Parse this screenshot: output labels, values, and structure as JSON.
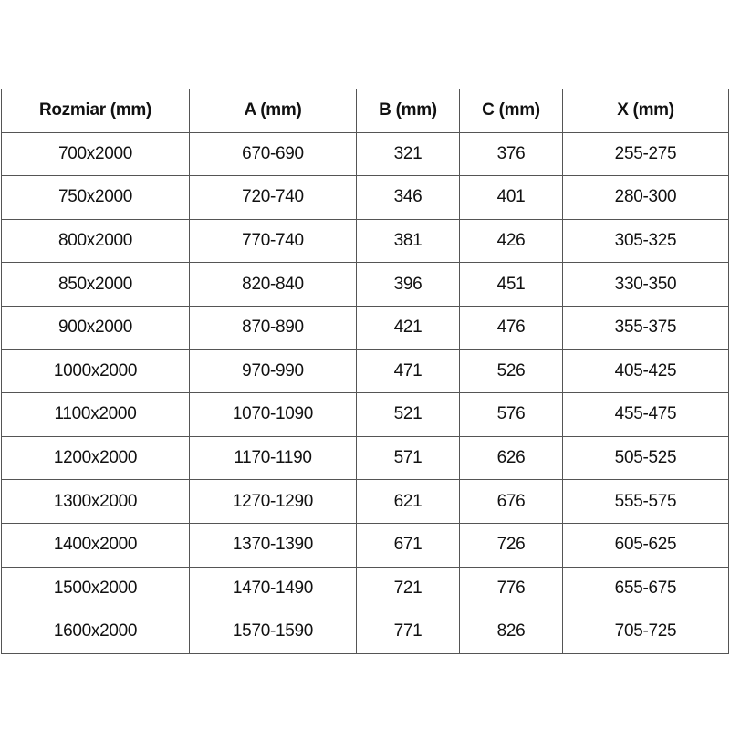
{
  "table": {
    "headers": [
      "Rozmiar (mm)",
      "A (mm)",
      "B (mm)",
      "C (mm)",
      "X (mm)"
    ],
    "rows": [
      [
        "700x2000",
        "670-690",
        "321",
        "376",
        "255-275"
      ],
      [
        "750x2000",
        "720-740",
        "346",
        "401",
        "280-300"
      ],
      [
        "800x2000",
        "770-740",
        "381",
        "426",
        "305-325"
      ],
      [
        "850x2000",
        "820-840",
        "396",
        "451",
        "330-350"
      ],
      [
        "900x2000",
        "870-890",
        "421",
        "476",
        "355-375"
      ],
      [
        "1000x2000",
        "970-990",
        "471",
        "526",
        "405-425"
      ],
      [
        "1100x2000",
        "1070-1090",
        "521",
        "576",
        "455-475"
      ],
      [
        "1200x2000",
        "1170-1190",
        "571",
        "626",
        "505-525"
      ],
      [
        "1300x2000",
        "1270-1290",
        "621",
        "676",
        "555-575"
      ],
      [
        "1400x2000",
        "1370-1390",
        "671",
        "726",
        "605-625"
      ],
      [
        "1500x2000",
        "1470-1490",
        "721",
        "776",
        "655-675"
      ],
      [
        "1600x2000",
        "1570-1590",
        "771",
        "826",
        "705-725"
      ]
    ]
  }
}
